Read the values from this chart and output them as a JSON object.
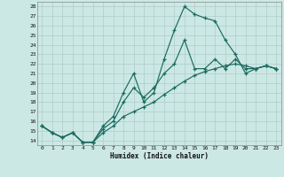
{
  "title": "",
  "xlabel": "Humidex (Indice chaleur)",
  "xlim": [
    -0.5,
    23.5
  ],
  "ylim": [
    13.5,
    28.5
  ],
  "yticks": [
    14,
    15,
    16,
    17,
    18,
    19,
    20,
    21,
    22,
    23,
    24,
    25,
    26,
    27,
    28
  ],
  "xticks": [
    0,
    1,
    2,
    3,
    4,
    5,
    6,
    7,
    8,
    9,
    10,
    11,
    12,
    13,
    14,
    15,
    16,
    17,
    18,
    19,
    20,
    21,
    22,
    23
  ],
  "bg_color": "#cce8e4",
  "line_color": "#1a6b60",
  "grid_color": "#b0ccc8",
  "lines": [
    {
      "x": [
        0,
        1,
        2,
        3,
        4,
        5,
        6,
        7,
        8,
        9,
        10,
        11,
        12,
        13,
        14,
        15,
        16,
        17,
        18,
        19,
        20,
        21,
        22,
        23
      ],
      "y": [
        15.5,
        14.8,
        14.3,
        14.8,
        13.8,
        13.8,
        15.5,
        16.5,
        19.0,
        21.0,
        18.0,
        19.0,
        22.5,
        25.5,
        28.0,
        27.2,
        26.8,
        26.5,
        24.5,
        23.0,
        21.0,
        21.5,
        21.8,
        21.5
      ]
    },
    {
      "x": [
        0,
        1,
        2,
        3,
        4,
        5,
        6,
        7,
        8,
        9,
        10,
        11,
        12,
        13,
        14,
        15,
        16,
        17,
        18,
        19,
        20,
        21,
        22,
        23
      ],
      "y": [
        15.5,
        14.8,
        14.3,
        14.8,
        13.8,
        13.8,
        15.2,
        16.0,
        18.0,
        19.5,
        18.5,
        19.5,
        21.0,
        22.0,
        24.5,
        21.5,
        21.5,
        22.5,
        21.5,
        22.5,
        21.5,
        21.5,
        21.8,
        21.5
      ]
    },
    {
      "x": [
        0,
        1,
        2,
        3,
        4,
        5,
        6,
        7,
        8,
        9,
        10,
        11,
        12,
        13,
        14,
        15,
        16,
        17,
        18,
        19,
        20,
        21,
        22,
        23
      ],
      "y": [
        15.5,
        14.8,
        14.3,
        14.8,
        13.8,
        13.8,
        14.8,
        15.5,
        16.5,
        17.0,
        17.5,
        18.0,
        18.8,
        19.5,
        20.2,
        20.8,
        21.2,
        21.5,
        21.8,
        22.0,
        21.8,
        21.5,
        21.8,
        21.5
      ]
    }
  ]
}
